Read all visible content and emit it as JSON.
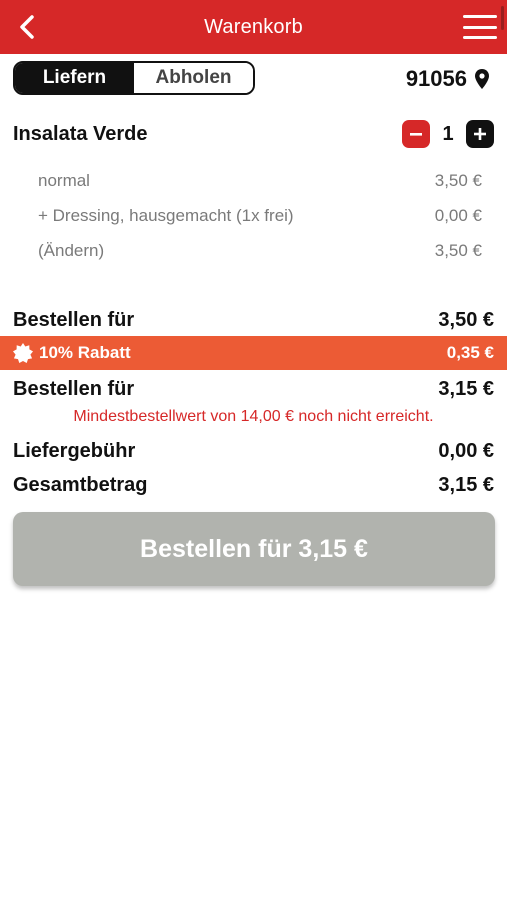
{
  "header": {
    "title": "Warenkorb"
  },
  "delivery_toggle": {
    "options": [
      "Liefern",
      "Abholen"
    ],
    "selected": "Liefern"
  },
  "location": {
    "zip": "91056"
  },
  "cart": {
    "items": [
      {
        "name": "Insalata Verde",
        "quantity": "1",
        "details": [
          {
            "label": "normal",
            "price": "3,50 €"
          },
          {
            "label": "+ Dressing, hausgemacht (1x frei)",
            "price": "0,00 €"
          },
          {
            "label": "(Ändern)",
            "price": "3,50 €"
          }
        ]
      }
    ]
  },
  "summary": {
    "subtotal_label": "Bestellen für",
    "subtotal_value": "3,50 €",
    "discount_label": "10% Rabatt",
    "discount_value": "0,35 €",
    "after_discount_label": "Bestellen für",
    "after_discount_value": "3,15 €",
    "warning": "Mindestbestellwert von 14,00 € noch nicht erreicht.",
    "delivery_fee_label": "Liefergebühr",
    "delivery_fee_value": "0,00 €",
    "total_label": "Gesamtbetrag",
    "total_value": "3,15 €"
  },
  "order_button": {
    "label": "Bestellen für 3,15 €"
  },
  "colors": {
    "brand_red": "#d62828",
    "discount_orange": "#ec5b35",
    "disabled_button": "#b1b3ae"
  },
  "icons": [
    "back-arrow-icon",
    "hamburger-menu-icon",
    "location-pin-icon",
    "minus-icon",
    "plus-icon",
    "discount-badge-icon"
  ]
}
